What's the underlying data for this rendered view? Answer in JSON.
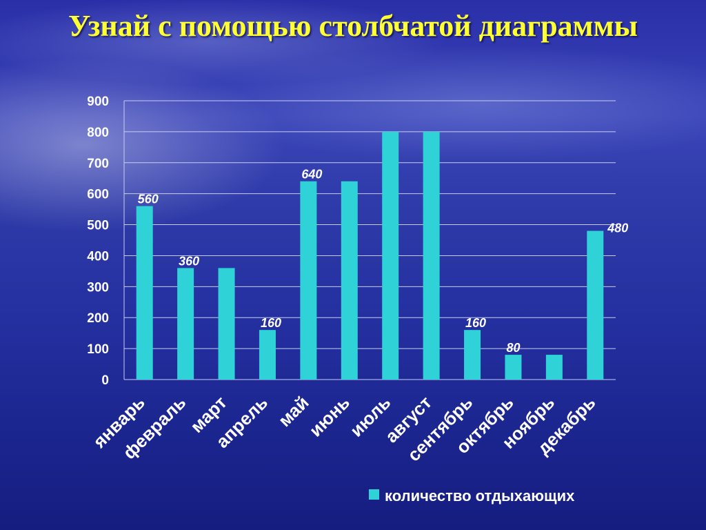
{
  "slide": {
    "title": "Узнай с помощью столбчатой диаграммы"
  },
  "colors": {
    "bar": "#2fd2d6",
    "title": "#ffff33",
    "grid": "#c9cdf2"
  },
  "chart_data": {
    "type": "bar",
    "categories": [
      "январь",
      "февраль",
      "март",
      "апрель",
      "май",
      "июнь",
      "июль",
      "август",
      "сентябрь",
      "октябрь",
      "ноябрь",
      "декабрь"
    ],
    "series": [
      {
        "name": "количество отдыхающих",
        "values": [
          560,
          360,
          360,
          160,
          640,
          640,
          800,
          800,
          160,
          80,
          80,
          480
        ]
      }
    ],
    "data_labels": [
      {
        "category": "январь",
        "text": "560"
      },
      {
        "category": "февраль",
        "text": "360"
      },
      {
        "category": "апрель",
        "text": "160"
      },
      {
        "category": "май",
        "text": "640"
      },
      {
        "category": "сентябрь",
        "text": "160"
      },
      {
        "category": "октябрь",
        "text": "80"
      },
      {
        "category": "декабрь",
        "text": "480"
      }
    ],
    "yticks": [
      0,
      100,
      200,
      300,
      400,
      500,
      600,
      700,
      800,
      900
    ],
    "ylim": [
      0,
      900
    ],
    "grid": true,
    "legend": "bottom-right"
  }
}
